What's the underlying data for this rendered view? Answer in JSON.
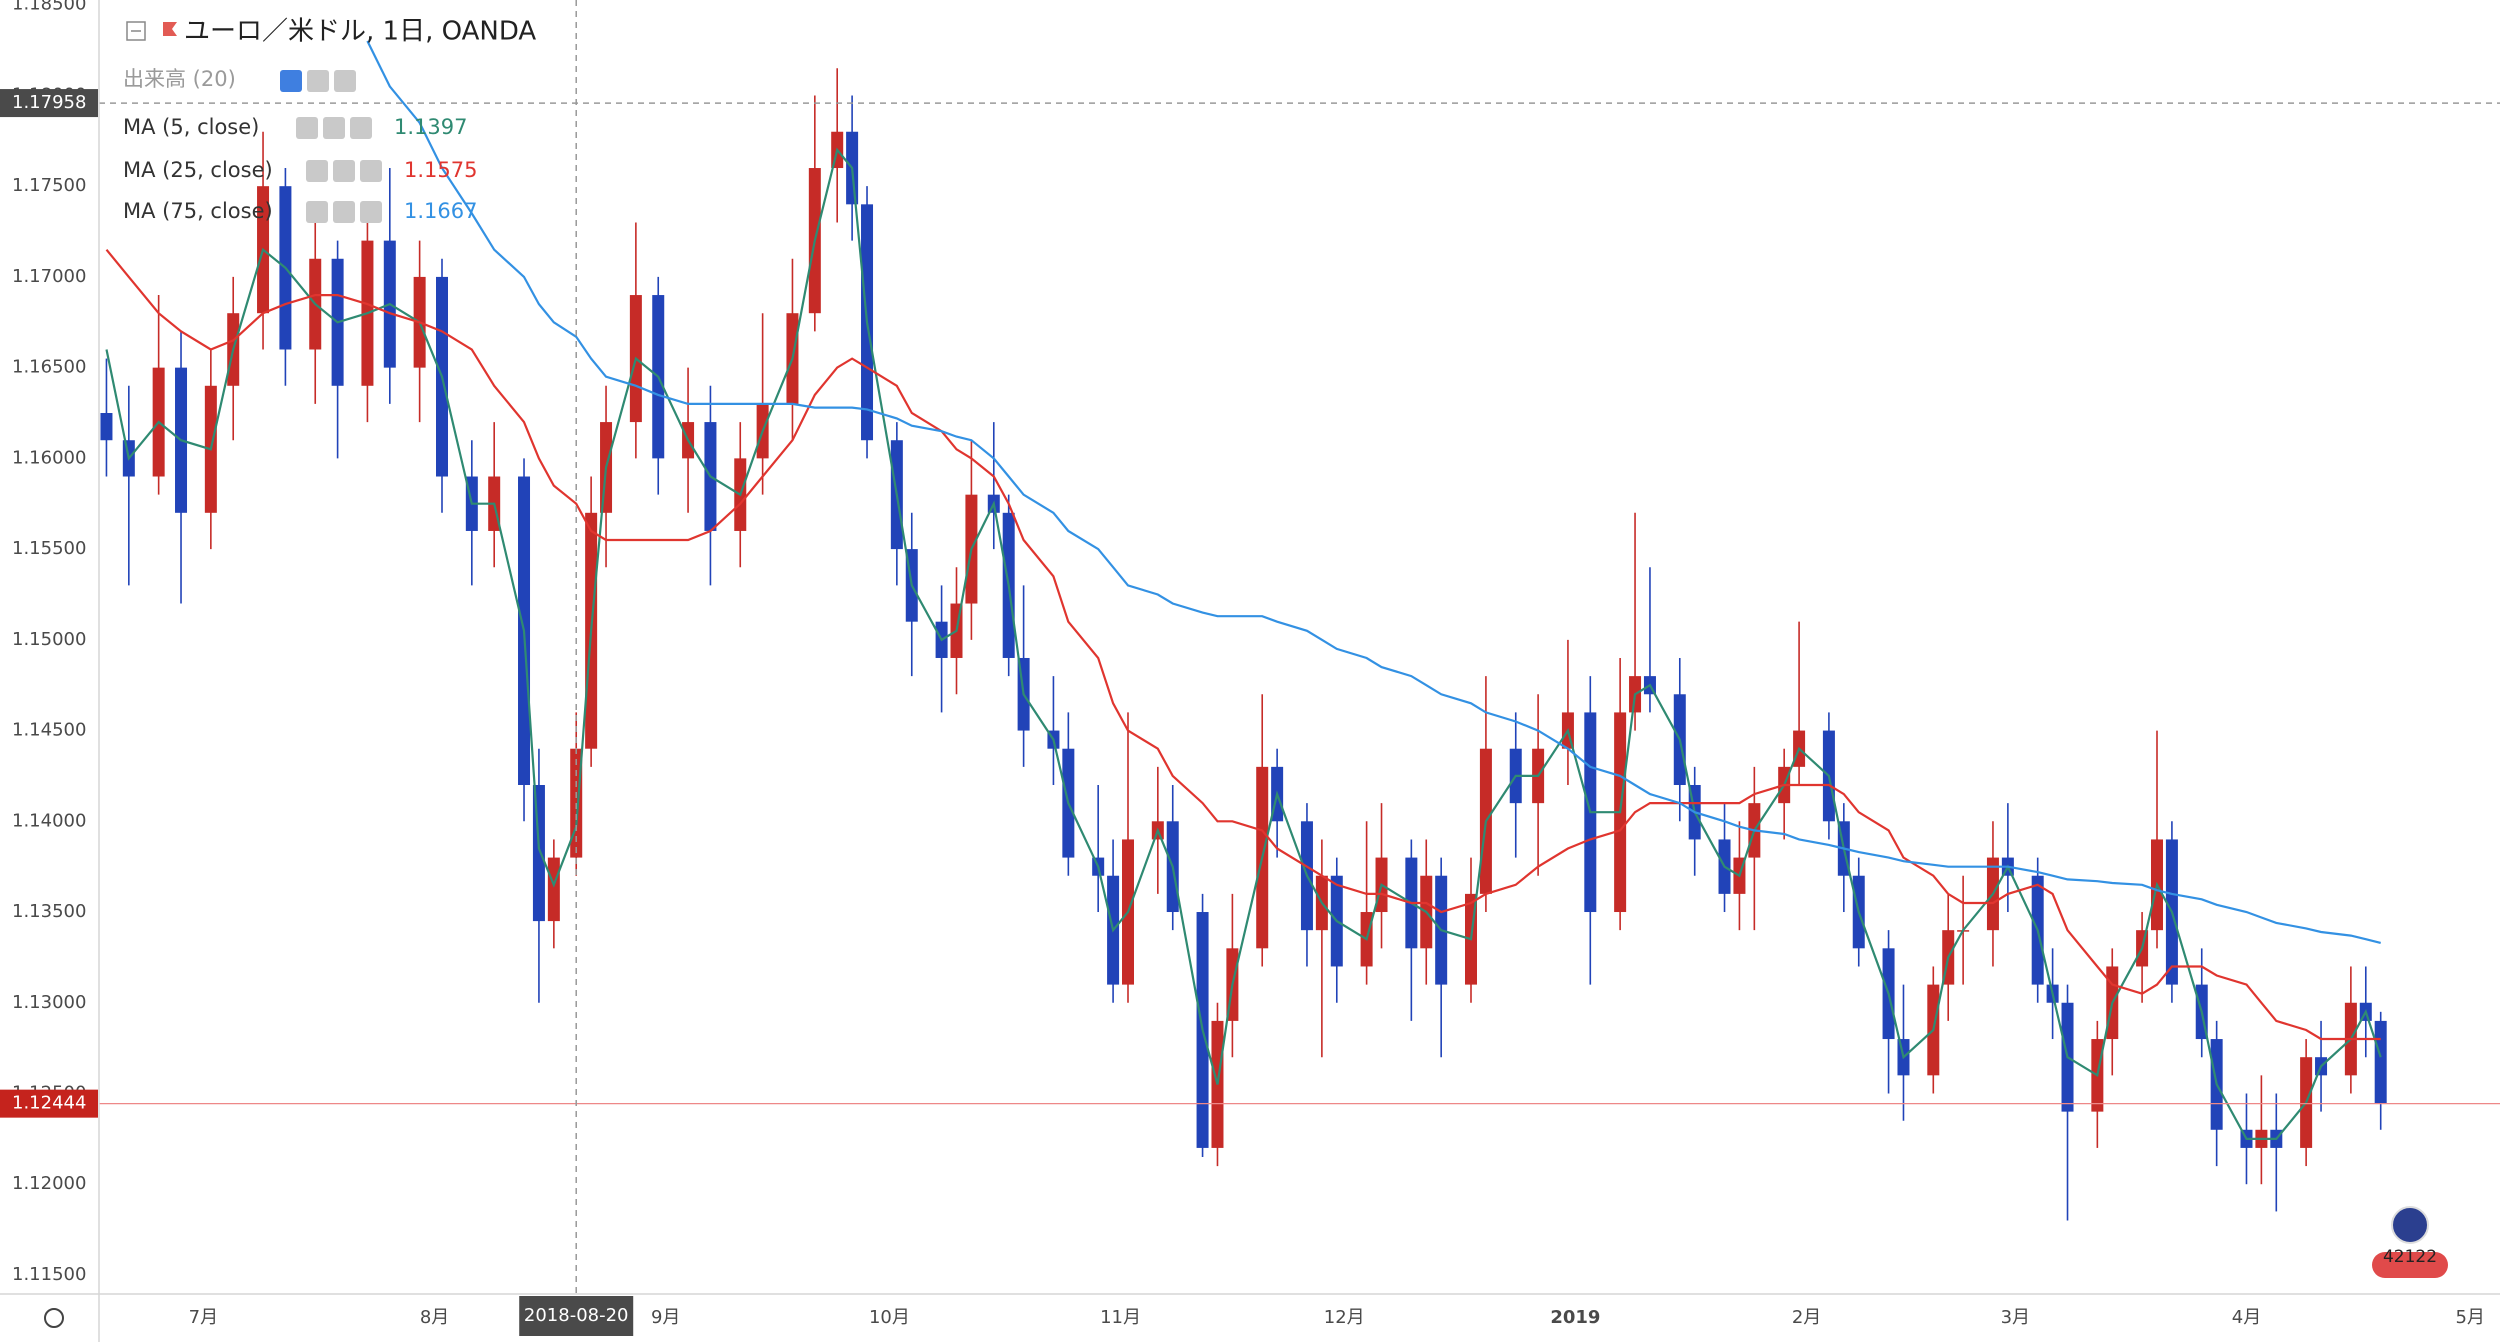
{
  "chart_data": {
    "type": "candlestick",
    "title": "ユーロ／米ドル, 1日, OANDA",
    "volume_label": "出来高 (20)",
    "badge": "42122",
    "x": [
      "2018-06-18",
      "2018-06-21",
      "2018-06-25",
      "2018-06-28",
      "2018-07-02",
      "2018-07-05",
      "2018-07-09",
      "2018-07-12",
      "2018-07-16",
      "2018-07-19",
      "2018-07-23",
      "2018-07-26",
      "2018-07-30",
      "2018-08-02",
      "2018-08-06",
      "2018-08-09",
      "2018-08-13",
      "2018-08-15",
      "2018-08-17",
      "2018-08-20",
      "2018-08-22",
      "2018-08-24",
      "2018-08-28",
      "2018-08-31",
      "2018-09-04",
      "2018-09-07",
      "2018-09-11",
      "2018-09-14",
      "2018-09-18",
      "2018-09-21",
      "2018-09-24",
      "2018-09-26",
      "2018-09-28",
      "2018-10-02",
      "2018-10-04",
      "2018-10-08",
      "2018-10-10",
      "2018-10-12",
      "2018-10-15",
      "2018-10-17",
      "2018-10-19",
      "2018-10-23",
      "2018-10-25",
      "2018-10-29",
      "2018-10-31",
      "2018-11-02",
      "2018-11-06",
      "2018-11-08",
      "2018-11-12",
      "2018-11-14",
      "2018-11-16",
      "2018-11-20",
      "2018-11-22",
      "2018-11-26",
      "2018-11-28",
      "2018-11-30",
      "2018-12-04",
      "2018-12-06",
      "2018-12-10",
      "2018-12-12",
      "2018-12-14",
      "2018-12-18",
      "2018-12-20",
      "2018-12-24",
      "2018-12-27",
      "2018-12-31",
      "2019-01-03",
      "2019-01-07",
      "2019-01-09",
      "2019-01-11",
      "2019-01-15",
      "2019-01-17",
      "2019-01-21",
      "2019-01-23",
      "2019-01-25",
      "2019-01-29",
      "2019-01-31",
      "2019-02-04",
      "2019-02-06",
      "2019-02-08",
      "2019-02-12",
      "2019-02-14",
      "2019-02-18",
      "2019-02-20",
      "2019-02-22",
      "2019-02-26",
      "2019-02-28",
      "2019-03-04",
      "2019-03-06",
      "2019-03-08",
      "2019-03-12",
      "2019-03-14",
      "2019-03-18",
      "2019-03-20",
      "2019-03-22",
      "2019-03-26",
      "2019-03-28",
      "2019-04-01",
      "2019-04-03",
      "2019-04-05",
      "2019-04-09",
      "2019-04-11",
      "2019-04-15",
      "2019-04-17",
      "2019-04-19"
    ],
    "open": [
      1.1625,
      1.161,
      1.159,
      1.165,
      1.157,
      1.164,
      1.168,
      1.175,
      1.166,
      1.171,
      1.164,
      1.172,
      1.165,
      1.17,
      1.159,
      1.156,
      1.159,
      1.142,
      1.1345,
      1.138,
      1.144,
      1.157,
      1.162,
      1.169,
      1.16,
      1.162,
      1.156,
      1.16,
      1.163,
      1.168,
      1.176,
      1.178,
      1.174,
      1.161,
      1.155,
      1.151,
      1.149,
      1.152,
      1.158,
      1.157,
      1.149,
      1.145,
      1.144,
      1.138,
      1.137,
      1.131,
      1.139,
      1.14,
      1.135,
      1.122,
      1.129,
      1.133,
      1.143,
      1.14,
      1.134,
      1.137,
      1.132,
      1.135,
      1.138,
      1.133,
      1.137,
      1.131,
      1.136,
      1.144,
      1.141,
      1.144,
      1.146,
      1.135,
      1.146,
      1.148,
      1.147,
      1.142,
      1.139,
      1.136,
      1.138,
      1.141,
      1.143,
      1.145,
      1.14,
      1.137,
      1.133,
      1.128,
      1.126,
      1.131,
      1.134,
      1.134,
      1.138,
      1.137,
      1.131,
      1.13,
      1.124,
      1.128,
      1.132,
      1.134,
      1.139,
      1.131,
      1.128,
      1.123,
      1.122,
      1.123,
      1.122,
      1.127,
      1.126,
      1.13,
      1.129
    ],
    "high": [
      1.1655,
      1.164,
      1.169,
      1.167,
      1.166,
      1.17,
      1.178,
      1.176,
      1.173,
      1.172,
      1.174,
      1.176,
      1.172,
      1.171,
      1.161,
      1.162,
      1.16,
      1.144,
      1.139,
      1.146,
      1.159,
      1.164,
      1.173,
      1.17,
      1.165,
      1.164,
      1.162,
      1.168,
      1.171,
      1.18,
      1.1815,
      1.18,
      1.175,
      1.162,
      1.157,
      1.153,
      1.154,
      1.161,
      1.162,
      1.158,
      1.153,
      1.148,
      1.146,
      1.142,
      1.139,
      1.146,
      1.143,
      1.142,
      1.136,
      1.13,
      1.136,
      1.147,
      1.144,
      1.141,
      1.139,
      1.138,
      1.14,
      1.141,
      1.139,
      1.139,
      1.138,
      1.138,
      1.148,
      1.146,
      1.147,
      1.15,
      1.148,
      1.149,
      1.157,
      1.154,
      1.149,
      1.143,
      1.141,
      1.14,
      1.143,
      1.144,
      1.151,
      1.146,
      1.141,
      1.138,
      1.134,
      1.131,
      1.132,
      1.136,
      1.137,
      1.14,
      1.141,
      1.138,
      1.133,
      1.131,
      1.129,
      1.133,
      1.135,
      1.145,
      1.14,
      1.133,
      1.129,
      1.125,
      1.126,
      1.125,
      1.128,
      1.129,
      1.132,
      1.132,
      1.1295
    ],
    "low": [
      1.159,
      1.153,
      1.158,
      1.152,
      1.155,
      1.161,
      1.166,
      1.164,
      1.163,
      1.16,
      1.162,
      1.163,
      1.162,
      1.157,
      1.153,
      1.154,
      1.14,
      1.13,
      1.133,
      1.137,
      1.143,
      1.154,
      1.16,
      1.158,
      1.157,
      1.153,
      1.154,
      1.158,
      1.161,
      1.167,
      1.173,
      1.172,
      1.16,
      1.153,
      1.148,
      1.146,
      1.147,
      1.15,
      1.155,
      1.148,
      1.143,
      1.142,
      1.137,
      1.135,
      1.13,
      1.13,
      1.136,
      1.134,
      1.1215,
      1.121,
      1.127,
      1.132,
      1.138,
      1.132,
      1.127,
      1.13,
      1.131,
      1.133,
      1.129,
      1.131,
      1.127,
      1.13,
      1.135,
      1.138,
      1.137,
      1.142,
      1.131,
      1.134,
      1.145,
      1.146,
      1.14,
      1.137,
      1.135,
      1.134,
      1.134,
      1.139,
      1.142,
      1.139,
      1.135,
      1.132,
      1.125,
      1.1235,
      1.125,
      1.129,
      1.131,
      1.132,
      1.135,
      1.13,
      1.128,
      1.118,
      1.122,
      1.126,
      1.13,
      1.133,
      1.13,
      1.127,
      1.121,
      1.12,
      1.12,
      1.1185,
      1.121,
      1.124,
      1.125,
      1.127,
      1.123
    ],
    "close": [
      1.161,
      1.159,
      1.165,
      1.157,
      1.164,
      1.168,
      1.175,
      1.166,
      1.171,
      1.164,
      1.172,
      1.165,
      1.17,
      1.159,
      1.156,
      1.159,
      1.142,
      1.1345,
      1.138,
      1.144,
      1.157,
      1.162,
      1.169,
      1.16,
      1.162,
      1.156,
      1.16,
      1.163,
      1.168,
      1.176,
      1.178,
      1.174,
      1.161,
      1.155,
      1.151,
      1.149,
      1.152,
      1.158,
      1.157,
      1.149,
      1.145,
      1.144,
      1.138,
      1.137,
      1.131,
      1.139,
      1.14,
      1.135,
      1.122,
      1.129,
      1.133,
      1.143,
      1.14,
      1.134,
      1.137,
      1.132,
      1.135,
      1.138,
      1.133,
      1.137,
      1.131,
      1.136,
      1.144,
      1.141,
      1.144,
      1.146,
      1.135,
      1.146,
      1.148,
      1.147,
      1.142,
      1.139,
      1.136,
      1.138,
      1.141,
      1.143,
      1.145,
      1.14,
      1.137,
      1.133,
      1.128,
      1.126,
      1.131,
      1.134,
      1.134,
      1.138,
      1.137,
      1.131,
      1.13,
      1.124,
      1.128,
      1.132,
      1.134,
      1.139,
      1.131,
      1.128,
      1.123,
      1.122,
      1.123,
      1.122,
      1.127,
      1.126,
      1.13,
      1.129,
      1.12444
    ],
    "up_color": "#c62b27",
    "down_color": "#2143b8",
    "series": [
      {
        "name": "MA (5, close)",
        "color": "#2f8a72",
        "values": [
          1.166,
          1.16,
          1.162,
          1.161,
          1.1605,
          1.166,
          1.1715,
          1.1705,
          1.1685,
          1.1675,
          1.168,
          1.1685,
          1.1675,
          1.1645,
          1.1575,
          1.1575,
          1.1505,
          1.1385,
          1.1365,
          1.1397,
          1.1505,
          1.1595,
          1.1655,
          1.1645,
          1.161,
          1.159,
          1.158,
          1.1615,
          1.1655,
          1.172,
          1.177,
          1.176,
          1.1675,
          1.158,
          1.153,
          1.15,
          1.1505,
          1.155,
          1.1575,
          1.153,
          1.147,
          1.1445,
          1.141,
          1.1375,
          1.134,
          1.135,
          1.1395,
          1.1375,
          1.1285,
          1.1255,
          1.131,
          1.138,
          1.1415,
          1.137,
          1.1355,
          1.1345,
          1.1335,
          1.1365,
          1.1355,
          1.135,
          1.134,
          1.1335,
          1.14,
          1.1425,
          1.1425,
          1.145,
          1.1405,
          1.1405,
          1.147,
          1.1475,
          1.1445,
          1.1405,
          1.1375,
          1.137,
          1.1395,
          1.142,
          1.144,
          1.1425,
          1.1385,
          1.135,
          1.1305,
          1.127,
          1.1285,
          1.1325,
          1.134,
          1.136,
          1.1375,
          1.134,
          1.1305,
          1.127,
          1.126,
          1.13,
          1.133,
          1.1365,
          1.135,
          1.1295,
          1.1255,
          1.1225,
          1.1225,
          1.1225,
          1.1245,
          1.1265,
          1.128,
          1.1295,
          1.127
        ]
      },
      {
        "name": "MA (25, close)",
        "color": "#e0352f",
        "values": [
          1.1715,
          1.17,
          1.168,
          1.167,
          1.166,
          1.1665,
          1.168,
          1.1685,
          1.169,
          1.169,
          1.1685,
          1.168,
          1.1675,
          1.167,
          1.166,
          1.164,
          1.162,
          1.16,
          1.1585,
          1.1575,
          1.156,
          1.1555,
          1.1555,
          1.1555,
          1.1555,
          1.156,
          1.1575,
          1.159,
          1.161,
          1.1635,
          1.165,
          1.1655,
          1.165,
          1.164,
          1.1625,
          1.1615,
          1.1605,
          1.16,
          1.159,
          1.1575,
          1.1555,
          1.1535,
          1.151,
          1.149,
          1.1465,
          1.145,
          1.144,
          1.1425,
          1.141,
          1.14,
          1.14,
          1.1395,
          1.1385,
          1.1375,
          1.137,
          1.1365,
          1.136,
          1.136,
          1.1355,
          1.1355,
          1.135,
          1.1355,
          1.136,
          1.1365,
          1.1375,
          1.1385,
          1.139,
          1.1395,
          1.1405,
          1.141,
          1.141,
          1.141,
          1.141,
          1.141,
          1.1415,
          1.142,
          1.142,
          1.142,
          1.1415,
          1.1405,
          1.1395,
          1.138,
          1.137,
          1.136,
          1.1355,
          1.1355,
          1.136,
          1.1365,
          1.136,
          1.134,
          1.132,
          1.131,
          1.1305,
          1.131,
          1.132,
          1.132,
          1.1315,
          1.131,
          1.13,
          1.129,
          1.1285,
          1.128,
          1.128,
          1.128,
          1.128
        ]
      },
      {
        "name": "MA (75, close)",
        "color": "#3391e3",
        "values": [
          null,
          null,
          null,
          null,
          null,
          null,
          null,
          null,
          null,
          null,
          1.183,
          1.1805,
          1.1785,
          1.176,
          1.1735,
          1.1715,
          1.17,
          1.1685,
          1.1675,
          1.1667,
          1.1655,
          1.1645,
          1.164,
          1.1635,
          1.163,
          1.163,
          1.163,
          1.163,
          1.163,
          1.1628,
          1.1628,
          1.1628,
          1.1627,
          1.1622,
          1.1618,
          1.1615,
          1.1612,
          1.161,
          1.16,
          1.159,
          1.158,
          1.157,
          1.156,
          1.155,
          1.154,
          1.153,
          1.1525,
          1.152,
          1.1515,
          1.1513,
          1.1513,
          1.1513,
          1.151,
          1.1505,
          1.15,
          1.1495,
          1.149,
          1.1485,
          1.148,
          1.1475,
          1.147,
          1.1465,
          1.146,
          1.1455,
          1.145,
          1.144,
          1.143,
          1.1425,
          1.142,
          1.1415,
          1.141,
          1.1405,
          1.14,
          1.1397,
          1.1395,
          1.1393,
          1.139,
          1.1387,
          1.1385,
          1.1383,
          1.138,
          1.1378,
          1.1376,
          1.1375,
          1.1375,
          1.1375,
          1.1375,
          1.1372,
          1.137,
          1.1368,
          1.1367,
          1.1366,
          1.1365,
          1.1362,
          1.136,
          1.1357,
          1.1354,
          1.135,
          1.1347,
          1.1344,
          1.1341,
          1.1339,
          1.1337,
          1.1335,
          1.1333
        ]
      }
    ],
    "crosshair": {
      "x": "2018-08-20",
      "y": 1.17958
    },
    "xlim": [
      "2018-06-17",
      "2019-05-05"
    ],
    "xticks": [
      {
        "value": "2018-07-01",
        "label": "7月"
      },
      {
        "value": "2018-08-01",
        "label": "8月"
      },
      {
        "value": "2018-09-01",
        "label": "9月"
      },
      {
        "value": "2018-10-01",
        "label": "10月"
      },
      {
        "value": "2018-11-01",
        "label": "11月"
      },
      {
        "value": "2018-12-01",
        "label": "12月"
      },
      {
        "value": "2019-01-01",
        "label": "2019"
      },
      {
        "value": "2019-02-01",
        "label": "2月"
      },
      {
        "value": "2019-03-01",
        "label": "3月"
      },
      {
        "value": "2019-04-01",
        "label": "4月"
      },
      {
        "value": "2019-05-01",
        "label": "5月"
      }
    ],
    "ylim": [
      1.11395,
      1.18526
    ],
    "yticks": [
      {
        "value": 1.185,
        "label": "1.18500"
      },
      {
        "value": 1.18,
        "label": "1.18000"
      },
      {
        "value": 1.175,
        "label": "1.17500"
      },
      {
        "value": 1.17,
        "label": "1.17000"
      },
      {
        "value": 1.165,
        "label": "1.16500"
      },
      {
        "value": 1.16,
        "label": "1.16000"
      },
      {
        "value": 1.155,
        "label": "1.15500"
      },
      {
        "value": 1.15,
        "label": "1.15000"
      },
      {
        "value": 1.145,
        "label": "1.14500"
      },
      {
        "value": 1.14,
        "label": "1.14000"
      },
      {
        "value": 1.135,
        "label": "1.13500"
      },
      {
        "value": 1.13,
        "label": "1.13000"
      },
      {
        "value": 1.125,
        "label": "1.12500"
      },
      {
        "value": 1.12,
        "label": "1.12000"
      },
      {
        "value": 1.115,
        "label": "1.11500"
      }
    ],
    "grid": false
  }
}
